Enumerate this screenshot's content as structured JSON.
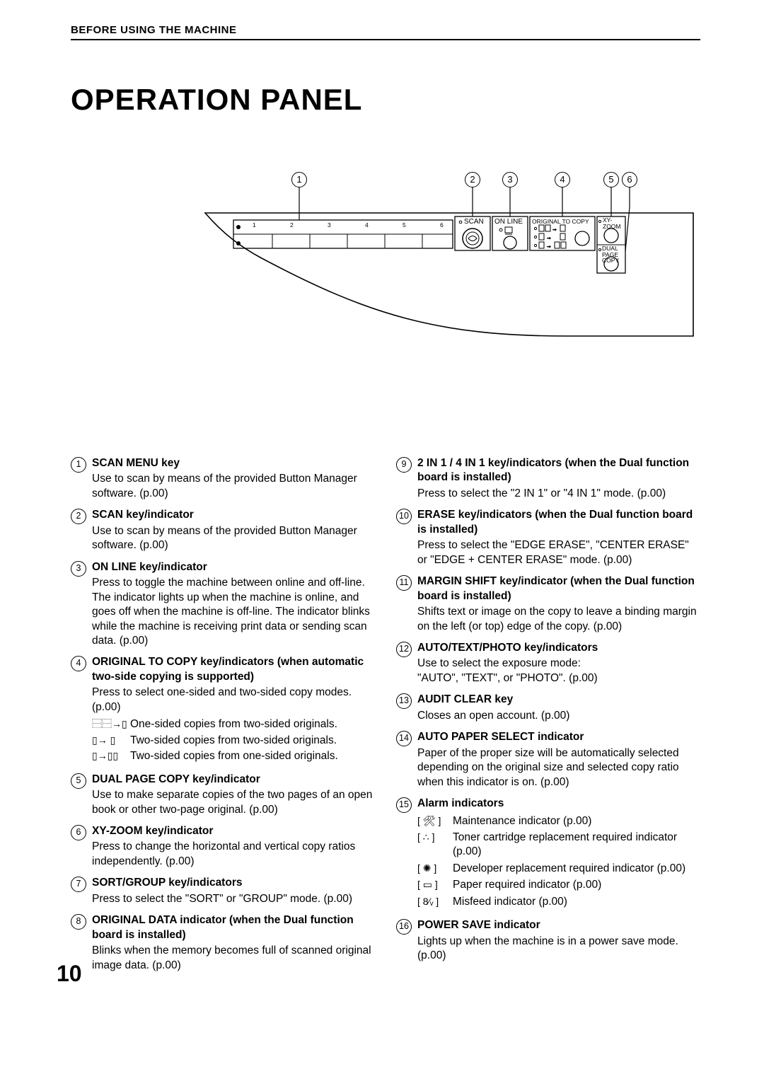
{
  "header_section": "BEFORE USING THE MACHINE",
  "title": "OPERATION PANEL",
  "page_number": "10",
  "diagram": {
    "callouts": [
      "1",
      "2",
      "3",
      "4",
      "5",
      "6"
    ],
    "labels": {
      "scan": "SCAN",
      "online": "ON LINE",
      "original_to_copy": "ORIGINAL TO COPY",
      "xy_zoom": "XY-\nZOOM",
      "dual_page_copy": "DUAL\nPAGE\nCOPY"
    },
    "menu_nums": [
      "1",
      "2",
      "3",
      "4",
      "5",
      "6"
    ]
  },
  "items_left": [
    {
      "n": "1",
      "title": "SCAN MENU key",
      "desc": "Use to scan by means of the provided Button Manager software. (p.00)"
    },
    {
      "n": "2",
      "title": "SCAN key/indicator",
      "desc": "Use to scan by means of the provided Button Manager software. (p.00)"
    },
    {
      "n": "3",
      "title": "ON LINE key/indicator",
      "desc": "Press to toggle the machine between online and off-line. The indicator lights up when the machine is online, and goes off when the machine is off-line. The indicator blinks while the machine is receiving print data or sending scan data. (p.00)"
    },
    {
      "n": "4",
      "title": "ORIGINAL TO COPY key/indicators (when automatic two-side copying is supported)",
      "desc": "Press to select one-sided and two-sided copy modes. (p.00)",
      "subs": [
        {
          "icon": "⿱⿱→▯",
          "text": "One-sided copies from two-sided originals."
        },
        {
          "icon": "▯→  ▯",
          "text": "Two-sided copies from two-sided originals."
        },
        {
          "icon": "▯→▯▯",
          "text": "Two-sided copies from one-sided originals."
        }
      ]
    },
    {
      "n": "5",
      "title": "DUAL PAGE COPY key/indicator",
      "desc": "Use to make separate copies of the two pages of an open book or other two-page original. (p.00)"
    },
    {
      "n": "6",
      "title": "XY-ZOOM key/indicator",
      "desc": "Press to change the horizontal and vertical copy ratios independently. (p.00)"
    },
    {
      "n": "7",
      "title": "SORT/GROUP key/indicators",
      "desc": "Press to select the \"SORT\" or \"GROUP\" mode. (p.00)"
    },
    {
      "n": "8",
      "title": "ORIGINAL DATA indicator (when the Dual function board is installed)",
      "desc": "Blinks when the memory becomes full of scanned original image data. (p.00)"
    }
  ],
  "items_right": [
    {
      "n": "9",
      "title": "2 IN 1 / 4 IN 1 key/indicators (when the Dual function board is installed)",
      "desc": "Press to select the \"2 IN 1\" or \"4 IN 1\" mode. (p.00)"
    },
    {
      "n": "10",
      "title": "ERASE key/indicators (when the Dual function board is installed)",
      "desc": "Press to select the \"EDGE ERASE\", \"CENTER ERASE\" or \"EDGE + CENTER ERASE\" mode. (p.00)"
    },
    {
      "n": "11",
      "title": "MARGIN SHIFT key/indicator (when the Dual function board is installed)",
      "desc": "Shifts text or image on the copy to leave a binding margin on the left (or top) edge of the copy. (p.00)"
    },
    {
      "n": "12",
      "title": "AUTO/TEXT/PHOTO key/indicators",
      "desc": "Use to select the exposure mode:\n\"AUTO\", \"TEXT\", or \"PHOTO\". (p.00)"
    },
    {
      "n": "13",
      "title": "AUDIT CLEAR key",
      "desc": "Closes an open account. (p.00)"
    },
    {
      "n": "14",
      "title": "AUTO PAPER SELECT indicator",
      "desc": "Paper of the proper size will be automatically selected depending on the original size and selected copy ratio when this indicator is on. (p.00)"
    },
    {
      "n": "15",
      "title": "Alarm indicators",
      "alarms": [
        {
          "icon": "[ 🛠 ]",
          "text": "Maintenance indicator (p.00)"
        },
        {
          "icon": "[ ∴ ]",
          "text": "Toner cartridge replacement required indicator (p.00)"
        },
        {
          "icon": "[ ✺ ]",
          "text": "Developer replacement required indicator (p.00)"
        },
        {
          "icon": "[ ▭ ]",
          "text": "Paper required indicator (p.00)"
        },
        {
          "icon": "[ 8⁄ᵥ ]",
          "text": "Misfeed indicator (p.00)"
        }
      ]
    },
    {
      "n": "16",
      "title": "POWER SAVE indicator",
      "desc": "Lights up when the machine is in a power save mode. (p.00)"
    }
  ]
}
